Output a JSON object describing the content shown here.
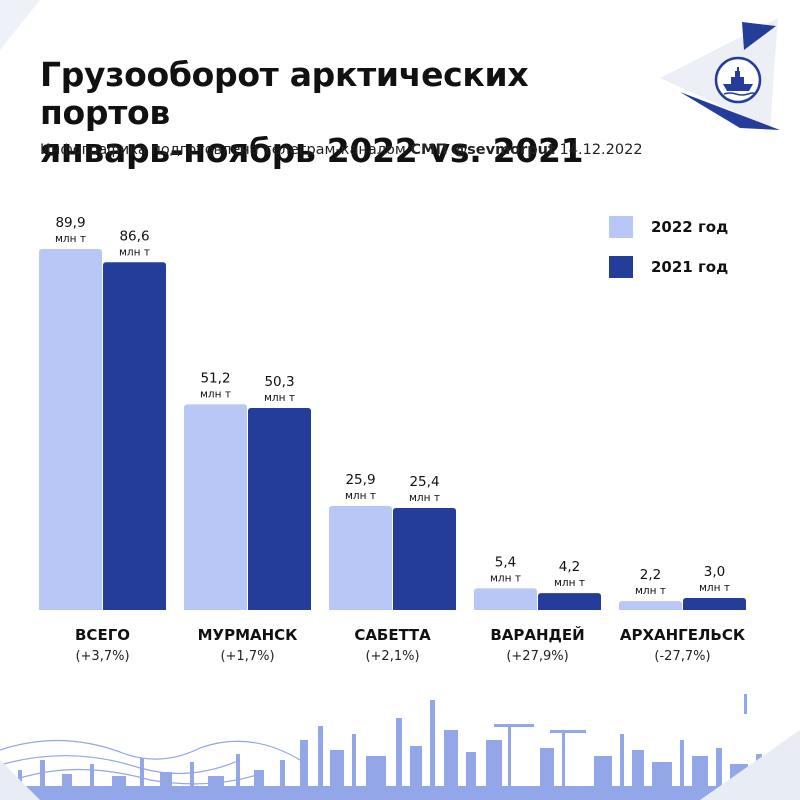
{
  "header": {
    "title_line1": "Грузооборот арктических портов",
    "title_line2": "январь-ноябрь 2022 vs. 2021",
    "subtitle_prefix": "Инфографика подготовлена телеграм-каналом",
    "subtitle_channel": "СМП @sevmorput",
    "subtitle_date": "14.12.2022"
  },
  "logo": {
    "icon": "icebreaker-ship-icon"
  },
  "colors": {
    "series_2022": "#b8c7f5",
    "series_2021": "#243c9a",
    "decor_light": "#e8ecf5",
    "decor_dark": "#243c9a",
    "skyline": "#93a6e8"
  },
  "chart_data": {
    "type": "bar",
    "categories": [
      "ВСЕГО",
      "МУРМАНСК",
      "САБЕТТА",
      "ВАРАНДЕЙ",
      "АРХАНГЕЛЬСК"
    ],
    "changes": [
      "(+3,7%)",
      "(+1,7%)",
      "(+2,1%)",
      "(+27,9%)",
      "(-27,7%)"
    ],
    "unit": "млн т",
    "series": [
      {
        "name": "2022 год",
        "values": [
          89.9,
          51.2,
          25.9,
          5.4,
          2.2
        ],
        "labels": [
          "89,9",
          "51,2",
          "25,9",
          "5,4",
          "2,2"
        ]
      },
      {
        "name": "2021 год",
        "values": [
          86.6,
          50.3,
          25.4,
          4.2,
          3.0
        ],
        "labels": [
          "86,6",
          "50,3",
          "25,4",
          "4,2",
          "3,0"
        ]
      }
    ],
    "ylim": [
      0,
      89.9
    ],
    "grid": false,
    "legend": "top-right"
  }
}
